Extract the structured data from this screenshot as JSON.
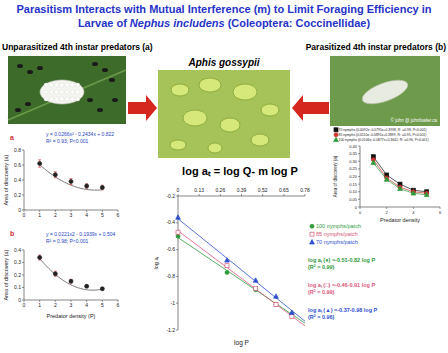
{
  "poster": {
    "title_parts": [
      "Parasitism Interacts with Mutual Interference (m) to Limit Foraging Efficiency in Larvae of ",
      "Nephus includens",
      " (Coleoptera: Coccinellidae)"
    ],
    "left_heading": "Unparasitized 4th instar predators (a)",
    "right_heading": "Parasitized 4th instar predators (b)",
    "center_heading": "Aphis gossypii",
    "photo_credit": "© john @ johnfowler.ca",
    "model_equation": "log aₜ = log Q- m log P"
  },
  "chart_data": [
    {
      "type": "line",
      "title": "a",
      "annotations": [
        "y = 0.0266x² - 0.2434x + 0.822",
        "R² = 0.93; P<0.001"
      ],
      "ylabel": "Area of discovery (a)",
      "x": [
        1,
        2,
        3,
        4,
        5
      ],
      "values": [
        0.62,
        0.47,
        0.38,
        0.32,
        0.3
      ],
      "errors": [
        0.05,
        0.04,
        0.04,
        0.03,
        0.03
      ],
      "fit": [
        0.0266,
        -0.2434,
        0.822
      ],
      "xlim": [
        0,
        6
      ],
      "xticks": [
        0,
        1,
        2,
        3,
        4,
        5,
        6
      ],
      "ylim": [
        0,
        0.8
      ],
      "yticks": [
        0,
        0.2,
        0.4,
        0.6,
        0.8
      ],
      "color": "#222222",
      "marker": "circle"
    },
    {
      "type": "line",
      "title": "b",
      "annotations": [
        "y = 0.0221x2 - 0.1939x + 0.504",
        "R² = 0.98; P<0.001"
      ],
      "xlabel": "Predator density (P)",
      "ylabel": "Area of discovery (a)",
      "x": [
        1,
        2,
        3,
        4,
        5
      ],
      "values": [
        0.34,
        0.21,
        0.15,
        0.11,
        0.09
      ],
      "errors": [
        0.02,
        0.02,
        0.015,
        0.01,
        0.01
      ],
      "fit": [
        0.0221,
        -0.1939,
        0.504
      ],
      "xlim": [
        0,
        6
      ],
      "xticks": [
        0,
        1,
        2,
        3,
        4,
        5,
        6
      ],
      "ylim": [
        0,
        0.4
      ],
      "yticks": [
        0,
        0.1,
        0.2,
        0.3,
        0.4
      ],
      "color": "#222222",
      "marker": "circle"
    },
    {
      "type": "line",
      "xlabel": "log P",
      "ylabel": "log aₜ",
      "x": [
        0,
        0.301,
        0.477,
        0.602,
        0.699
      ],
      "xlim": [
        0,
        0.78
      ],
      "xticks": [
        0,
        0.13,
        0.26,
        0.39,
        0.52,
        0.65,
        0.78
      ],
      "ylim": [
        -1.2,
        -0.2
      ],
      "yticks": [
        -0.2,
        -0.4,
        -0.6,
        -0.8,
        -1,
        -1.2
      ],
      "legend": "right",
      "series": [
        {
          "name": "100 nymphs/patch",
          "color": "#2e9a3a",
          "marker": "circle",
          "values": [
            -0.5,
            -0.77,
            -0.9,
            -1.01,
            -1.08
          ],
          "fit": [
            -0.82,
            -0.51
          ],
          "annotation": [
            "log aₜ (●) =-0.51-0.82 log P",
            "(R² = 0.99)"
          ]
        },
        {
          "name": "85 nymphs/patch",
          "color": "#d9577a",
          "marker": "open-square",
          "values": [
            -0.47,
            -0.72,
            -0.89,
            -1.01,
            -1.1
          ],
          "fit": [
            -0.91,
            -0.46
          ],
          "annotation": [
            "log aₜ (□) =-0.46-0.91 log P",
            "(R² = 0.99)"
          ]
        },
        {
          "name": "70 nymphs/patch",
          "color": "#2f4fd0",
          "marker": "triangle",
          "values": [
            -0.36,
            -0.68,
            -0.83,
            -0.95,
            -1.07
          ],
          "fit": [
            -0.98,
            -0.37
          ],
          "annotation": [
            "log aₜ (▲) =-0.37-0.98 log P",
            "(R² = 0.96)"
          ]
        }
      ]
    },
    {
      "type": "line",
      "xlabel": "Predator density",
      "ylabel": "Area of discovery (a)",
      "x": [
        1,
        2,
        3,
        4,
        5
      ],
      "xlim": [
        0,
        6
      ],
      "xticks": [
        0,
        2,
        4,
        6
      ],
      "ylim": [
        0,
        0.4
      ],
      "yticks": [
        0,
        0.05,
        {
          "value": 0.1,
          "label": "0.10"
        },
        0.15,
        {
          "value": 0.2,
          "label": "0.20"
        },
        0.25,
        {
          "value": 0.3,
          "label": "0.30"
        },
        0.35,
        {
          "value": 0.4,
          "label": "0.40"
        }
      ],
      "legend": "top",
      "series": [
        {
          "name": "70 nymphs (0.0092x²-0.0795x+0.3998, R² =0.98, P<0.001)",
          "color": "#111111",
          "marker": "square",
          "values": [
            0.33,
            0.21,
            0.15,
            0.11,
            0.1
          ]
        },
        {
          "name": "85 nymphs (0.0110x²-0.0891x+0.3899, R² =0.95, P<0.001)",
          "color": "#d03030",
          "marker": "circle",
          "values": [
            0.31,
            0.19,
            0.13,
            0.1,
            0.09
          ]
        },
        {
          "name": "100 nymphs (0.0106x²-0.0877x+0.3642, R² =0.96, P<0.001)",
          "color": "#2e9a3a",
          "marker": "triangle",
          "values": [
            0.29,
            0.18,
            0.12,
            0.09,
            0.08
          ]
        }
      ]
    }
  ]
}
